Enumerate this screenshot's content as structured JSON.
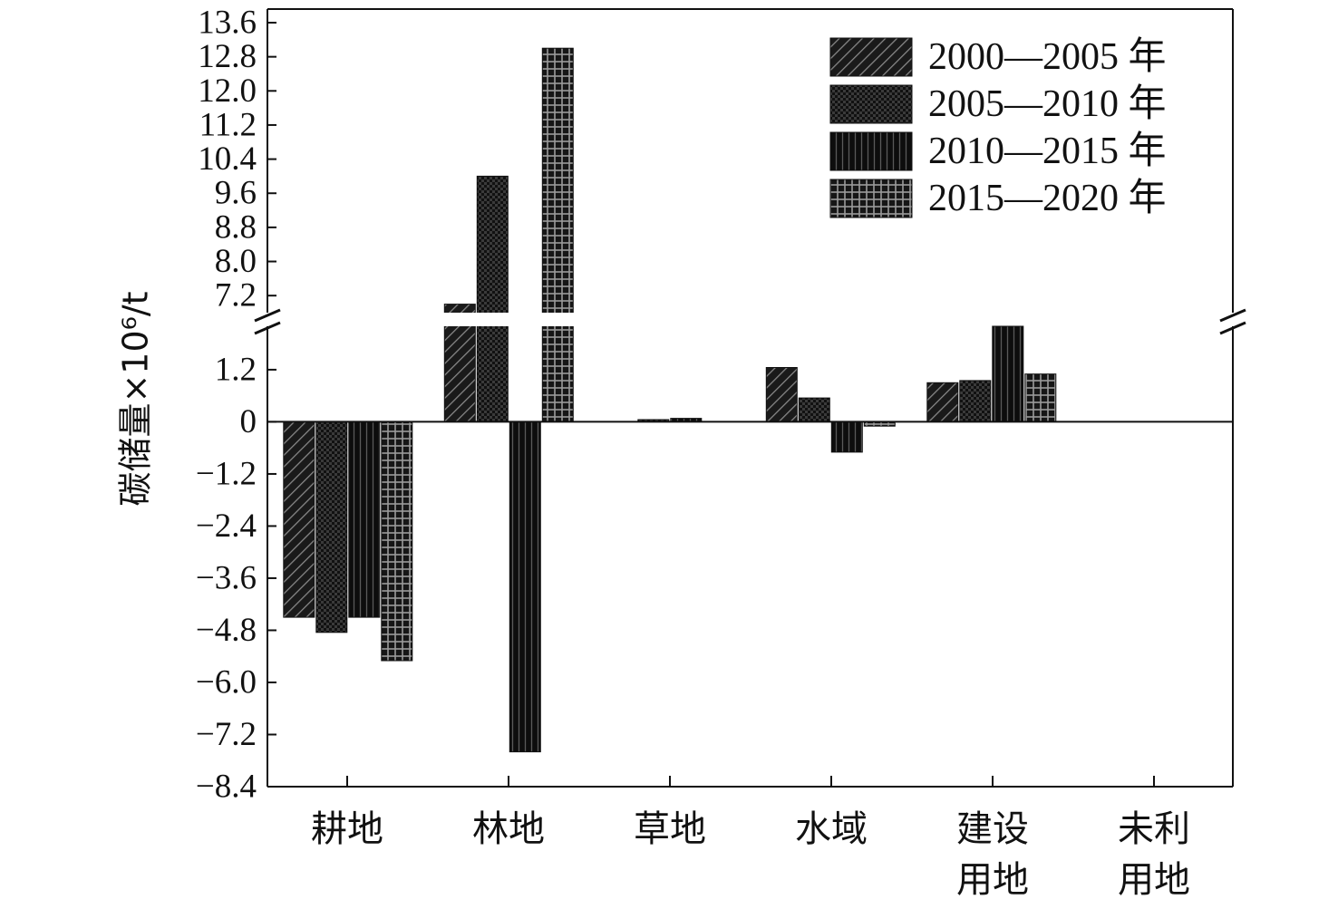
{
  "chart_data": {
    "type": "bar",
    "title": "",
    "xlabel": "",
    "ylabel": "碳储量×10⁶/t",
    "categories": [
      "耕地",
      "林地",
      "草地",
      "水域",
      "建设\n用地",
      "未利\n用地"
    ],
    "series": [
      {
        "name": "2000—2005 年",
        "values": [
          -4.5,
          7.0,
          0.0,
          1.25,
          0.9,
          0.0
        ]
      },
      {
        "name": "2005—2010 年",
        "values": [
          -4.85,
          10.0,
          0.05,
          0.55,
          0.95,
          0.0
        ]
      },
      {
        "name": "2010—2015 年",
        "values": [
          -4.5,
          -7.6,
          0.08,
          -0.7,
          2.2,
          0.0
        ]
      },
      {
        "name": "2015—2020 年",
        "values": [
          -5.5,
          13.0,
          0.0,
          -0.1,
          1.1,
          0.0
        ]
      }
    ],
    "ylim": [
      -8.4,
      13.6
    ],
    "axis_break": [
      2.2,
      6.8
    ],
    "yticks_lower": [
      "-8.4",
      "-7.2",
      "-6.0",
      "-4.8",
      "-3.6",
      "-2.4",
      "-1.2",
      "0",
      "1.2"
    ],
    "yticks_upper": [
      "7.2",
      "8.0",
      "8.8",
      "9.6",
      "10.4",
      "11.2",
      "12.0",
      "12.8",
      "13.6"
    ],
    "legend": {
      "position": "top-right"
    },
    "grid": false
  }
}
